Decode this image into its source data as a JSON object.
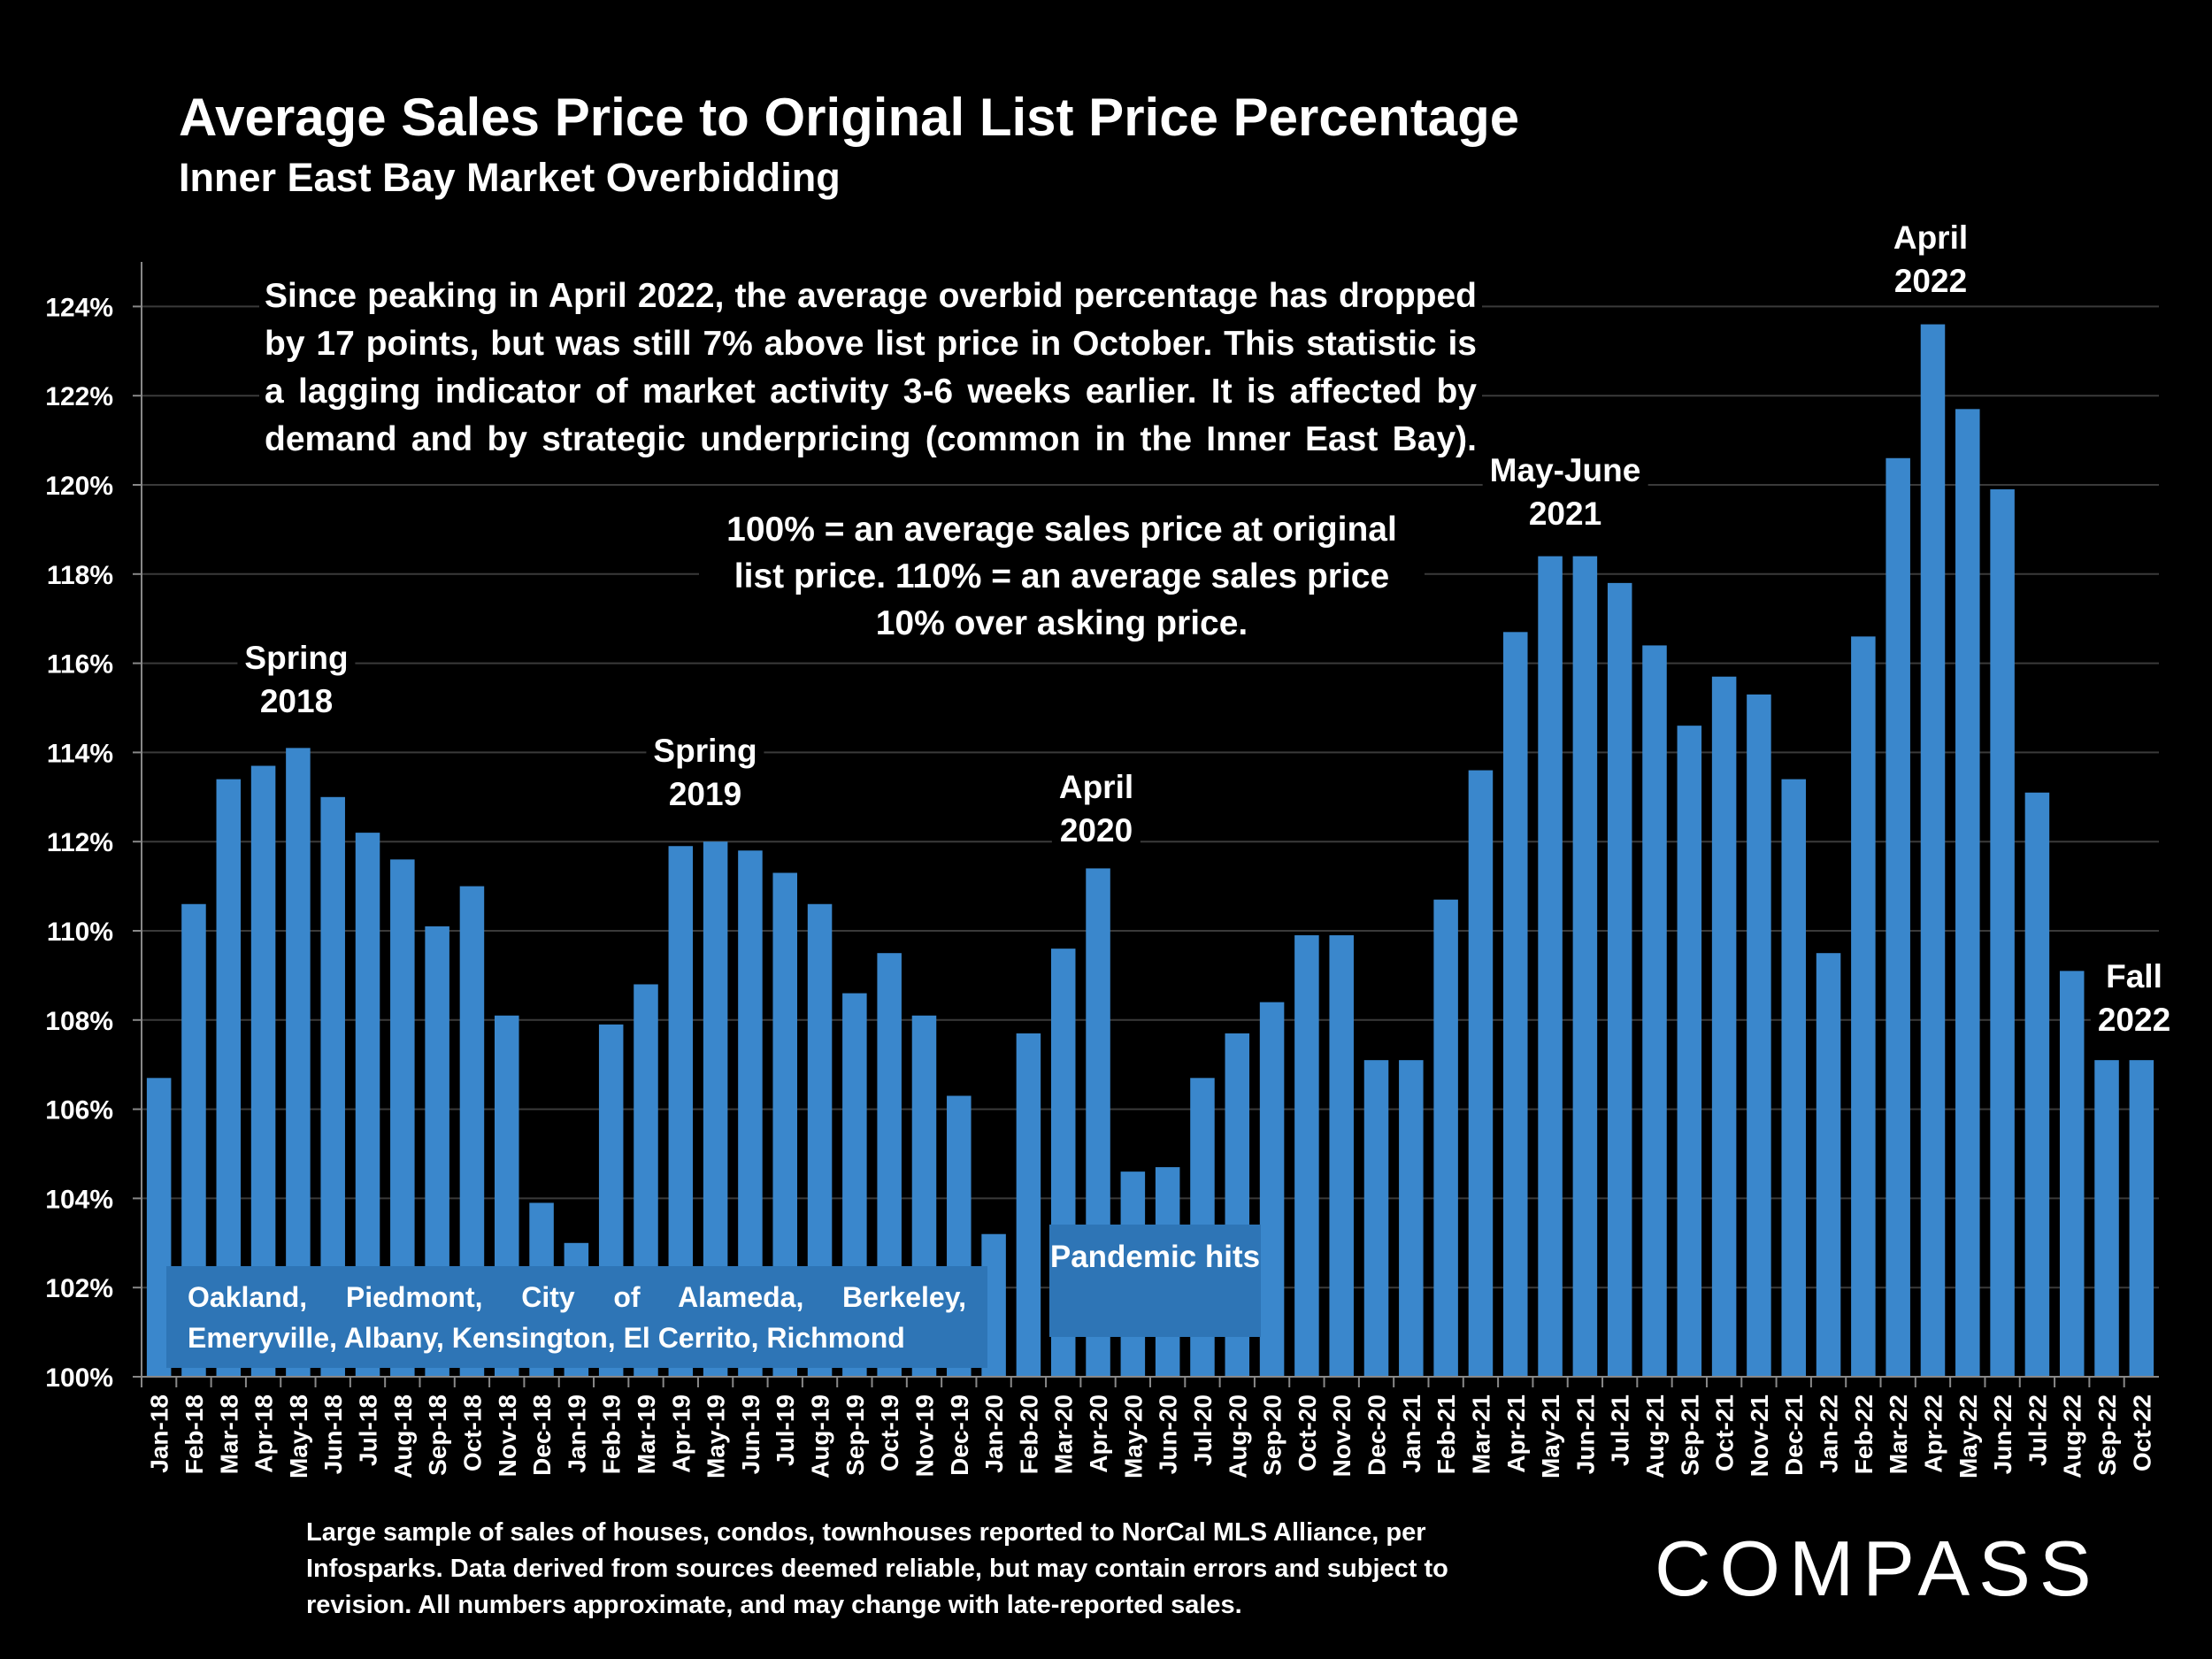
{
  "header": {
    "title": "Average Sales Price to Original List Price Percentage",
    "subtitle": "Inner East Bay Market Overbidding"
  },
  "annotations": {
    "main_text": "Since peaking in April 2022, the average overbid percentage has dropped by 17 points, but was still 7% above list price in October. This statistic is a lagging indicator of market activity 3-6 weeks earlier. It is affected by demand and by strategic underpricing (common in the Inner East Bay).",
    "explanation": "100% = an average sales price at original list price. 110% = an average sales price 10% over asking price.",
    "spring_2018": "Spring\n2018",
    "spring_2019": "Spring\n2019",
    "april_2020": "April\n2020",
    "may_june_2021": "May-June\n2021",
    "april_2022": "April\n2022",
    "fall_2022": "Fall\n2022",
    "cities": "Oakland, Piedmont, City of Alameda, Berkeley, Emeryville, Albany, Kensington, El Cerrito, Richmond",
    "pandemic": "Pandemic hits"
  },
  "footnote": "Large sample of sales of houses, condos, townhouses reported to NorCal MLS Alliance, per Infosparks. Data derived from sources deemed reliable, but may contain errors and subject to revision. All numbers approximate, and may change with late-reported sales.",
  "logo": "COMPASS",
  "colors": {
    "bar": "#3a87cc",
    "annotation_box": "#2e75b6",
    "background": "#000000",
    "grid": "#3a3a3a"
  },
  "chart_data": {
    "type": "bar",
    "title": "Average Sales Price to Original List Price Percentage",
    "subtitle": "Inner East Bay Market Overbidding",
    "xlabel": "",
    "ylabel": "",
    "ylim": [
      100,
      125
    ],
    "yticks": [
      "100%",
      "102%",
      "104%",
      "106%",
      "108%",
      "110%",
      "112%",
      "114%",
      "116%",
      "118%",
      "120%",
      "122%",
      "124%"
    ],
    "grid": true,
    "categories": [
      "Jan-18",
      "Feb-18",
      "Mar-18",
      "Apr-18",
      "May-18",
      "Jun-18",
      "Jul-18",
      "Aug-18",
      "Sep-18",
      "Oct-18",
      "Nov-18",
      "Dec-18",
      "Jan-19",
      "Feb-19",
      "Mar-19",
      "Apr-19",
      "May-19",
      "Jun-19",
      "Jul-19",
      "Aug-19",
      "Sep-19",
      "Oct-19",
      "Nov-19",
      "Dec-19",
      "Jan-20",
      "Feb-20",
      "Mar-20",
      "Apr-20",
      "May-20",
      "Jun-20",
      "Jul-20",
      "Aug-20",
      "Sep-20",
      "Oct-20",
      "Nov-20",
      "Dec-20",
      "Jan-21",
      "Feb-21",
      "Mar-21",
      "Apr-21",
      "May-21",
      "Jun-21",
      "Jul-21",
      "Aug-21",
      "Sep-21",
      "Oct-21",
      "Nov-21",
      "Dec-21",
      "Jan-22",
      "Feb-22",
      "Mar-22",
      "Apr-22",
      "May-22",
      "Jun-22",
      "Jul-22",
      "Aug-22",
      "Sep-22",
      "Oct-22"
    ],
    "values": [
      106.7,
      110.6,
      113.4,
      113.7,
      114.1,
      113.0,
      112.2,
      111.6,
      110.1,
      111.0,
      108.1,
      103.9,
      103.0,
      107.9,
      108.8,
      111.9,
      112.0,
      111.8,
      111.3,
      110.6,
      108.6,
      109.5,
      108.1,
      106.3,
      103.2,
      107.7,
      109.6,
      111.4,
      104.6,
      104.7,
      106.7,
      107.7,
      108.4,
      109.9,
      109.9,
      107.1,
      107.1,
      110.7,
      113.6,
      116.7,
      118.4,
      118.4,
      117.8,
      116.4,
      114.6,
      115.7,
      115.3,
      113.4,
      109.5,
      116.6,
      120.6,
      123.6,
      121.7,
      119.9,
      113.1,
      109.1,
      107.1,
      107.1
    ]
  }
}
